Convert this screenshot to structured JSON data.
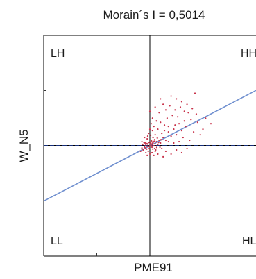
{
  "chart_data": {
    "type": "scatter",
    "title": "Morain´s I = 0,5014",
    "xlabel": "PME91",
    "ylabel": "W_N5",
    "xlim": [
      -4,
      4
    ],
    "ylim": [
      -4,
      4
    ],
    "quadrant_labels": {
      "top_left": "LH",
      "top_right": "HH",
      "bottom_left": "LL",
      "bottom_right": "HL"
    },
    "regression_line": {
      "slope": 0.5014,
      "intercept": 0,
      "color": "#6f8fcf"
    },
    "mean_line": {
      "y": 0,
      "color": "#1f3f9f",
      "style": "dashed"
    },
    "colors": {
      "points": "#c8324a",
      "frame": "#000000",
      "ticks": "#333333"
    },
    "series": [
      {
        "points": [
          [
            0.0,
            0.0
          ],
          [
            0.05,
            0.02
          ],
          [
            -0.05,
            -0.03
          ],
          [
            0.1,
            0.05
          ],
          [
            -0.1,
            -0.02
          ],
          [
            0.08,
            -0.05
          ],
          [
            -0.08,
            0.06
          ],
          [
            0.02,
            0.1
          ],
          [
            -0.02,
            -0.1
          ],
          [
            0.15,
            0.0
          ],
          [
            -0.15,
            0.03
          ],
          [
            0.12,
            0.12
          ],
          [
            -0.12,
            -0.12
          ],
          [
            0.2,
            0.08
          ],
          [
            -0.2,
            -0.05
          ],
          [
            0.18,
            -0.1
          ],
          [
            -0.18,
            0.1
          ],
          [
            0.25,
            0.15
          ],
          [
            -0.25,
            -0.15
          ],
          [
            0.3,
            0.05
          ],
          [
            -0.3,
            -0.08
          ],
          [
            0.06,
            0.2
          ],
          [
            -0.06,
            -0.2
          ],
          [
            0.22,
            -0.15
          ],
          [
            -0.22,
            0.12
          ],
          [
            0.35,
            0.2
          ],
          [
            0.4,
            0.1
          ],
          [
            0.5,
            0.3
          ],
          [
            0.45,
            0.45
          ],
          [
            0.6,
            0.2
          ],
          [
            0.7,
            0.5
          ],
          [
            0.8,
            0.35
          ],
          [
            0.9,
            0.6
          ],
          [
            1.0,
            0.4
          ],
          [
            1.1,
            0.8
          ],
          [
            1.2,
            0.55
          ],
          [
            1.3,
            0.9
          ],
          [
            0.55,
            0.75
          ],
          [
            0.65,
            1.0
          ],
          [
            0.85,
            1.1
          ],
          [
            0.95,
            1.3
          ],
          [
            1.05,
            1.05
          ],
          [
            1.15,
            1.4
          ],
          [
            1.25,
            0.3
          ],
          [
            1.35,
            0.7
          ],
          [
            1.45,
            1.2
          ],
          [
            1.55,
            0.95
          ],
          [
            1.65,
            0.5
          ],
          [
            1.75,
            1.15
          ],
          [
            0.3,
            0.6
          ],
          [
            0.4,
            0.85
          ],
          [
            0.2,
            0.4
          ],
          [
            0.25,
            0.9
          ],
          [
            0.35,
            1.2
          ],
          [
            0.15,
            0.7
          ],
          [
            0.1,
            0.55
          ],
          [
            0.75,
            1.45
          ],
          [
            1.0,
            1.7
          ],
          [
            1.2,
            1.6
          ],
          [
            0.6,
            1.3
          ],
          [
            0.5,
            1.5
          ],
          [
            0.8,
            1.8
          ],
          [
            1.4,
            1.5
          ],
          [
            1.6,
            1.35
          ],
          [
            1.8,
            0.85
          ],
          [
            1.9,
            0.4
          ],
          [
            2.0,
            0.6
          ],
          [
            1.1,
            0.15
          ],
          [
            0.9,
            0.1
          ],
          [
            0.7,
            0.15
          ],
          [
            0.45,
            -0.1
          ],
          [
            0.6,
            -0.2
          ],
          [
            0.8,
            -0.3
          ],
          [
            1.0,
            -0.15
          ],
          [
            1.2,
            -0.25
          ],
          [
            1.4,
            -0.1
          ],
          [
            0.3,
            -0.3
          ],
          [
            0.5,
            -0.4
          ],
          [
            0.15,
            -0.35
          ],
          [
            0.2,
            -0.2
          ],
          [
            -0.1,
            0.25
          ],
          [
            -0.2,
            0.3
          ],
          [
            -0.05,
            0.45
          ],
          [
            0.0,
            0.6
          ],
          [
            0.05,
            0.8
          ],
          [
            -0.08,
            0.35
          ],
          [
            0.1,
            1.0
          ],
          [
            0.0,
            1.25
          ],
          [
            0.12,
            0.3
          ],
          [
            0.03,
            0.38
          ],
          [
            -0.15,
            -0.25
          ],
          [
            -0.1,
            -0.35
          ],
          [
            0.0,
            -0.3
          ],
          [
            0.08,
            -0.25
          ],
          [
            -0.3,
            0.15
          ],
          [
            -0.35,
            -0.2
          ],
          [
            0.38,
            -0.05
          ],
          [
            0.28,
            0.28
          ],
          [
            0.18,
            0.22
          ],
          [
            0.07,
            0.15
          ],
          [
            -0.04,
            0.12
          ],
          [
            0.11,
            -0.12
          ],
          [
            -0.11,
            0.08
          ],
          [
            0.26,
            -0.06
          ],
          [
            0.33,
            0.12
          ],
          [
            -0.27,
            0.05
          ],
          [
            0.42,
            0.22
          ],
          [
            0.16,
            0.16
          ],
          [
            -0.16,
            -0.08
          ],
          [
            0.09,
            0.09
          ],
          [
            2.1,
            1.0
          ],
          [
            2.3,
            0.8
          ],
          [
            1.7,
            1.9
          ],
          [
            0.4,
            1.7
          ],
          [
            0.2,
            1.4
          ],
          [
            0.95,
            0.75
          ],
          [
            1.3,
            1.25
          ],
          [
            0.7,
            0.7
          ],
          [
            0.55,
            0.55
          ],
          [
            1.5,
            0.2
          ]
        ]
      }
    ]
  }
}
